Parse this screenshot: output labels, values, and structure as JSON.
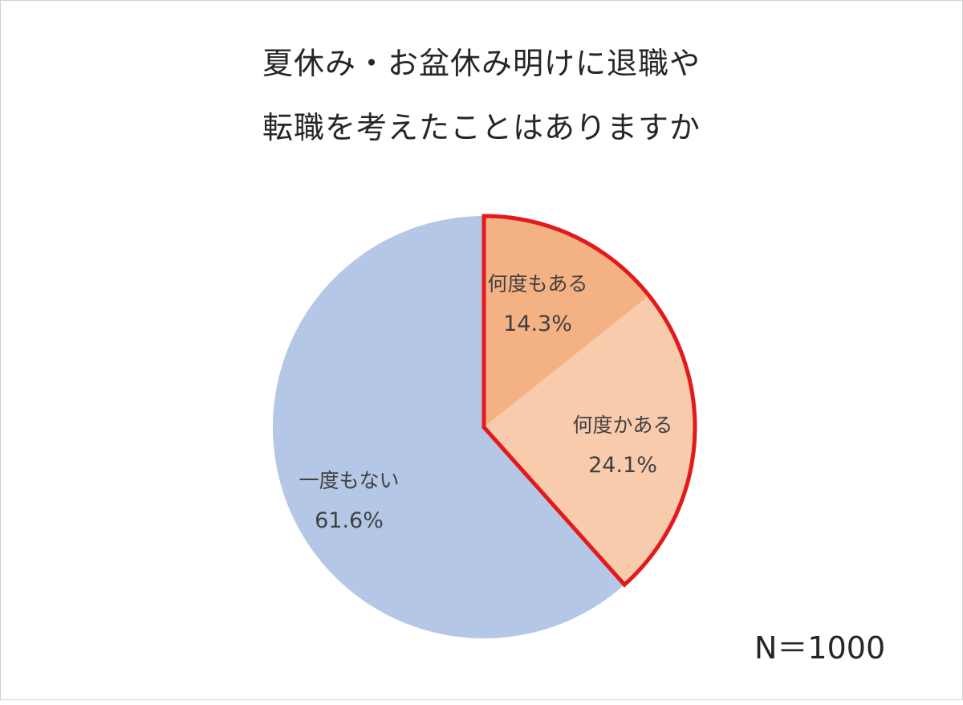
{
  "chart_data": {
    "type": "pie",
    "title_lines": [
      "夏休み・お盆休み明けに退職や",
      "転職を考えたことはありますか"
    ],
    "slices": [
      {
        "label": "何度もある",
        "value": 14.3,
        "value_label": "14.3%",
        "color": "#f4b183"
      },
      {
        "label": "何度かある",
        "value": 24.1,
        "value_label": "24.1%",
        "color": "#f8cbad"
      },
      {
        "label": "一度もない",
        "value": 61.6,
        "value_label": "61.6%",
        "color": "#b4c7e7"
      }
    ],
    "highlight_color": "#e31a1c",
    "note": "N＝1000"
  }
}
